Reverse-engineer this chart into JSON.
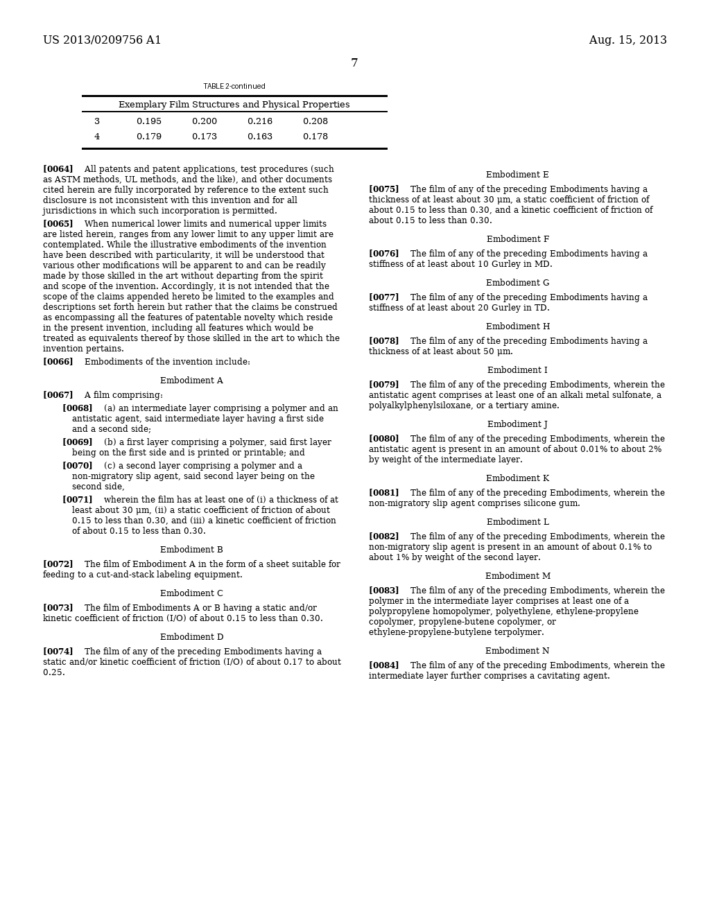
{
  "background_color": "#ffffff",
  "header_left": "US 2013/0209756 A1",
  "header_right": "Aug. 15, 2013",
  "page_number": "7",
  "table_title": "TABLE 2-continued",
  "table_subtitle": "Exemplary Film Structures and Physical Properties",
  "table_rows": [
    [
      "3",
      "0.195",
      "0.200",
      "0.216",
      "0.208"
    ],
    [
      "4",
      "0.179",
      "0.173",
      "0.163",
      "0.178"
    ]
  ],
  "left_paragraphs": [
    {
      "tag": "[0064]",
      "indent": 0,
      "center": false,
      "text": "All patents and patent applications, test procedures (such as ASTM methods, UL methods, and the like), and other documents cited herein are fully incorporated by reference to the extent such disclosure is not inconsistent with this invention and for all jurisdictions in which such incorporation is permitted."
    },
    {
      "tag": "[0065]",
      "indent": 0,
      "center": false,
      "text": "When numerical lower limits and numerical upper limits are listed herein, ranges from any lower limit to any upper limit are contemplated. While the illustrative embodiments of the invention have been described with particularity, it will be understood that various other modifications will be apparent to and can be readily made by those skilled in the art without departing from the spirit and scope of the invention. Accordingly, it is not intended that the scope of the claims appended hereto be limited to the examples and descriptions set forth herein but rather that the claims be construed as encompassing all the features of patentable novelty which reside in the present invention, including all features which would be treated as equivalents thereof by those skilled in the art to which the invention pertains."
    },
    {
      "tag": "[0066]",
      "indent": 0,
      "center": false,
      "text": "Embodiments of the invention include:"
    },
    {
      "tag": "",
      "indent": 0,
      "center": true,
      "text": "Embodiment A"
    },
    {
      "tag": "[0067]",
      "indent": 0,
      "center": false,
      "text": "A film comprising:"
    },
    {
      "tag": "[0068]",
      "indent": 1,
      "center": false,
      "text": "(a) an intermediate layer comprising a polymer and an antistatic agent, said intermediate layer having a first side and a second side;"
    },
    {
      "tag": "[0069]",
      "indent": 1,
      "center": false,
      "text": "(b) a first layer comprising a polymer, said first layer being on the first side and is printed or printable; and"
    },
    {
      "tag": "[0070]",
      "indent": 1,
      "center": false,
      "text": "(c) a second layer comprising a polymer and a non-migratory slip agent, said second layer being on the second side,"
    },
    {
      "tag": "[0071]",
      "indent": 1,
      "center": false,
      "text": "wherein the film has at least one of (i) a thickness of at least about 30 μm, (ii) a static coefficient of friction of about 0.15 to less than 0.30, and (iii) a kinetic coefficient of friction of about 0.15 to less than 0.30."
    },
    {
      "tag": "",
      "indent": 0,
      "center": true,
      "text": "Embodiment B"
    },
    {
      "tag": "[0072]",
      "indent": 0,
      "center": false,
      "text": "The film of Embodiment A in the form of a sheet suitable for feeding to a cut-and-stack labeling equipment."
    },
    {
      "tag": "",
      "indent": 0,
      "center": true,
      "text": "Embodiment C"
    },
    {
      "tag": "[0073]",
      "indent": 0,
      "center": false,
      "text": "The film of Embodiments A or B having a static and/or kinetic coefficient of friction (I/O) of about 0.15 to less than 0.30."
    },
    {
      "tag": "",
      "indent": 0,
      "center": true,
      "text": "Embodiment D"
    },
    {
      "tag": "[0074]",
      "indent": 0,
      "center": false,
      "text": "The film of any of the preceding Embodiments having a static and/or kinetic coefficient of friction (I/O) of about 0.17 to about 0.25."
    }
  ],
  "right_paragraphs": [
    {
      "tag": "",
      "indent": 0,
      "center": true,
      "text": "Embodiment E"
    },
    {
      "tag": "[0075]",
      "indent": 0,
      "center": false,
      "text": "The film of any of the preceding Embodiments having a thickness of at least about 30 μm, a static coefficient of friction of about 0.15 to less than 0.30, and a kinetic coefficient of friction of about 0.15 to less than 0.30."
    },
    {
      "tag": "",
      "indent": 0,
      "center": true,
      "text": "Embodiment F"
    },
    {
      "tag": "[0076]",
      "indent": 0,
      "center": false,
      "text": "The film of any of the preceding Embodiments having a stiffness of at least about 10 Gurley in MD."
    },
    {
      "tag": "",
      "indent": 0,
      "center": true,
      "text": "Embodiment G"
    },
    {
      "tag": "[0077]",
      "indent": 0,
      "center": false,
      "text": "The film of any of the preceding Embodiments having a stiffness of at least about 20 Gurley in TD."
    },
    {
      "tag": "",
      "indent": 0,
      "center": true,
      "text": "Embodiment H"
    },
    {
      "tag": "[0078]",
      "indent": 0,
      "center": false,
      "text": "The film of any of the preceding Embodiments having a thickness of at least about 50 μm."
    },
    {
      "tag": "",
      "indent": 0,
      "center": true,
      "text": "Embodiment I"
    },
    {
      "tag": "[0079]",
      "indent": 0,
      "center": false,
      "text": "The film of any of the preceding Embodiments, wherein the antistatic agent comprises at least one of an alkali metal sulfonate, a polyalkylphenylsiloxane, or a tertiary amine."
    },
    {
      "tag": "",
      "indent": 0,
      "center": true,
      "text": "Embodiment J"
    },
    {
      "tag": "[0080]",
      "indent": 0,
      "center": false,
      "text": "The film of any of the preceding Embodiments, wherein the antistatic agent is present in an amount of about 0.01% to about 2% by weight of the intermediate layer."
    },
    {
      "tag": "",
      "indent": 0,
      "center": true,
      "text": "Embodiment K"
    },
    {
      "tag": "[0081]",
      "indent": 0,
      "center": false,
      "text": "The film of any of the preceding Embodiments, wherein the non-migratory slip agent comprises silicone gum."
    },
    {
      "tag": "",
      "indent": 0,
      "center": true,
      "text": "Embodiment L"
    },
    {
      "tag": "[0082]",
      "indent": 0,
      "center": false,
      "text": "The film of any of the preceding Embodiments, wherein the non-migratory slip agent is present in an amount of about 0.1% to about 1% by weight of the second layer."
    },
    {
      "tag": "",
      "indent": 0,
      "center": true,
      "text": "Embodiment M"
    },
    {
      "tag": "[0083]",
      "indent": 0,
      "center": false,
      "text": "The film of any of the preceding Embodiments, wherein the polymer in the intermediate layer comprises at least one of a polypropylene homopolymer, polyethylene, ethylene-propylene copolymer, propylene-butene copolymer, or ethylene-propylene-butylene terpolymer."
    },
    {
      "tag": "",
      "indent": 0,
      "center": true,
      "text": "Embodiment N"
    },
    {
      "tag": "[0084]",
      "indent": 0,
      "center": false,
      "text": "The film of any of the preceding Embodiments, wherein the intermediate layer further comprises a cavitating agent."
    }
  ]
}
